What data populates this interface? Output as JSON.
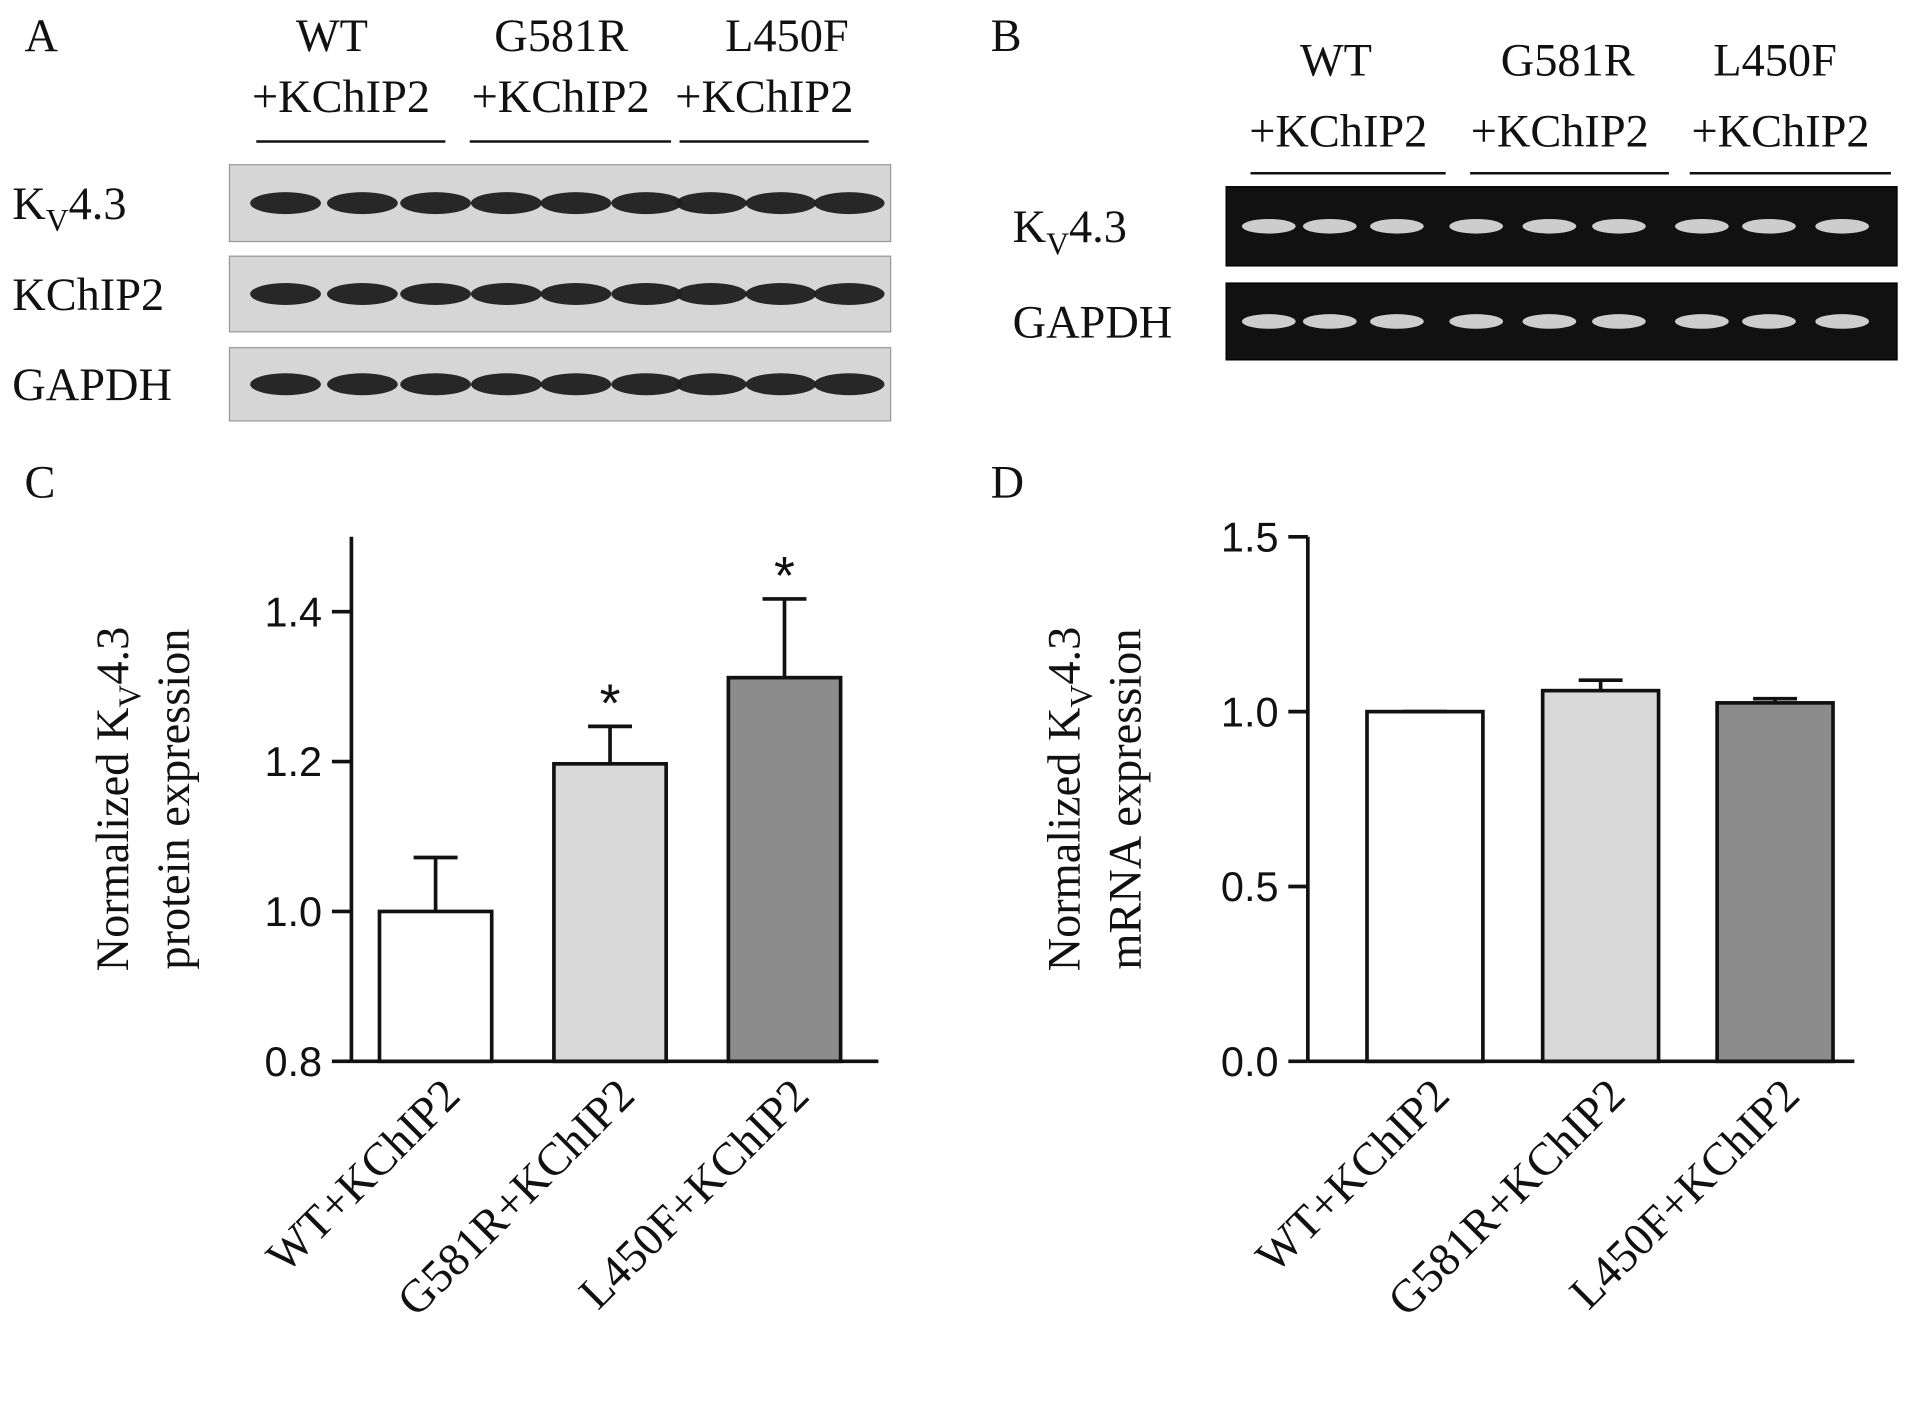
{
  "blots": [
    {
      "panel": "A",
      "groups": [
        {
          "name": "WT",
          "sub": "+KChIP2"
        },
        {
          "name": "G581R",
          "sub": "+KChIP2"
        },
        {
          "name": "L450F",
          "sub": "+KChIP2"
        }
      ],
      "rows": [
        {
          "main": "K",
          "sub": "V",
          "rest": "4.3"
        },
        {
          "main": "KChIP2"
        },
        {
          "main": "GAPDH"
        }
      ]
    },
    {
      "panel": "B",
      "groups": [
        {
          "name": "WT",
          "sub": "+KChIP2"
        },
        {
          "name": "G581R",
          "sub": "+KChIP2"
        },
        {
          "name": "L450F",
          "sub": "+KChIP2"
        }
      ],
      "rows": [
        {
          "main": "K",
          "sub": "V",
          "rest": "4.3"
        },
        {
          "main": "GAPDH"
        }
      ]
    }
  ],
  "chart_data": [
    {
      "type": "bar",
      "panel": "C",
      "ylabel": {
        "main": "Normalized K",
        "sub": "V",
        "rest": "4.3",
        "line2": "protein expression"
      },
      "categories": [
        "WT+KChIP2",
        "G581R+KChIP2",
        "L450F+KChIP2"
      ],
      "values": [
        1.0,
        1.197,
        1.312
      ],
      "errors": [
        0.072,
        0.05,
        0.105
      ],
      "colors": [
        "#ffffff",
        "#d9d9d9",
        "#8c8c8c"
      ],
      "significance": [
        null,
        "*",
        "*"
      ],
      "ylim": [
        0.8,
        1.5
      ],
      "yticks": [
        0.8,
        {
          "value": 1,
          "label": "1.0"
        },
        1.2,
        1.4
      ]
    },
    {
      "type": "bar",
      "panel": "D",
      "ylabel": {
        "main": "Normalized K",
        "sub": "V",
        "rest": "4.3",
        "line2": "mRNA expression"
      },
      "categories": [
        "WT+KChIP2",
        "G581R+KChIP2",
        "L450F+KChIP2"
      ],
      "values": [
        1.0,
        1.06,
        1.025
      ],
      "errors": [
        0,
        0.03,
        0.012
      ],
      "colors": [
        "#ffffff",
        "#d9d9d9",
        "#8c8c8c"
      ],
      "ylim": [
        0,
        1.5
      ],
      "yticks": [
        {
          "value": 0,
          "label": "0.0"
        },
        0.5,
        {
          "value": 1,
          "label": "1.0"
        },
        1.5
      ]
    }
  ]
}
